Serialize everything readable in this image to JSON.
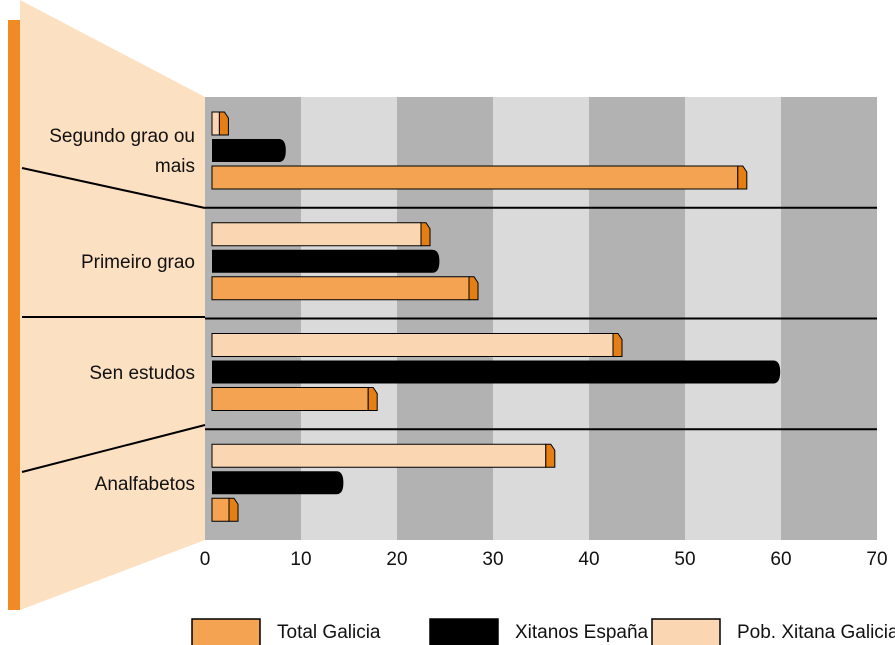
{
  "chart_data": {
    "type": "hbar",
    "categories": [
      "Segundo grao ou mais",
      "Primeiro grao",
      "Sen estudos",
      "Analfabetos"
    ],
    "series": [
      {
        "name": "Total Galicia",
        "color": "#f4a352",
        "values": [
          55.5,
          27.5,
          17,
          2.5
        ]
      },
      {
        "name": "Xitanos España",
        "color": "#000000",
        "values": [
          8,
          24,
          59.5,
          14
        ]
      },
      {
        "name": "Pob. Xitana Galicia",
        "color": "#fbd6b2",
        "values": [
          1.5,
          22.5,
          42.5,
          35.5
        ]
      }
    ],
    "xlim": [
      0,
      70
    ],
    "xticks": [
      0,
      10,
      20,
      30,
      40,
      50,
      60,
      70
    ],
    "band_colors": [
      "#b2b2b2",
      "#dadada"
    ]
  }
}
